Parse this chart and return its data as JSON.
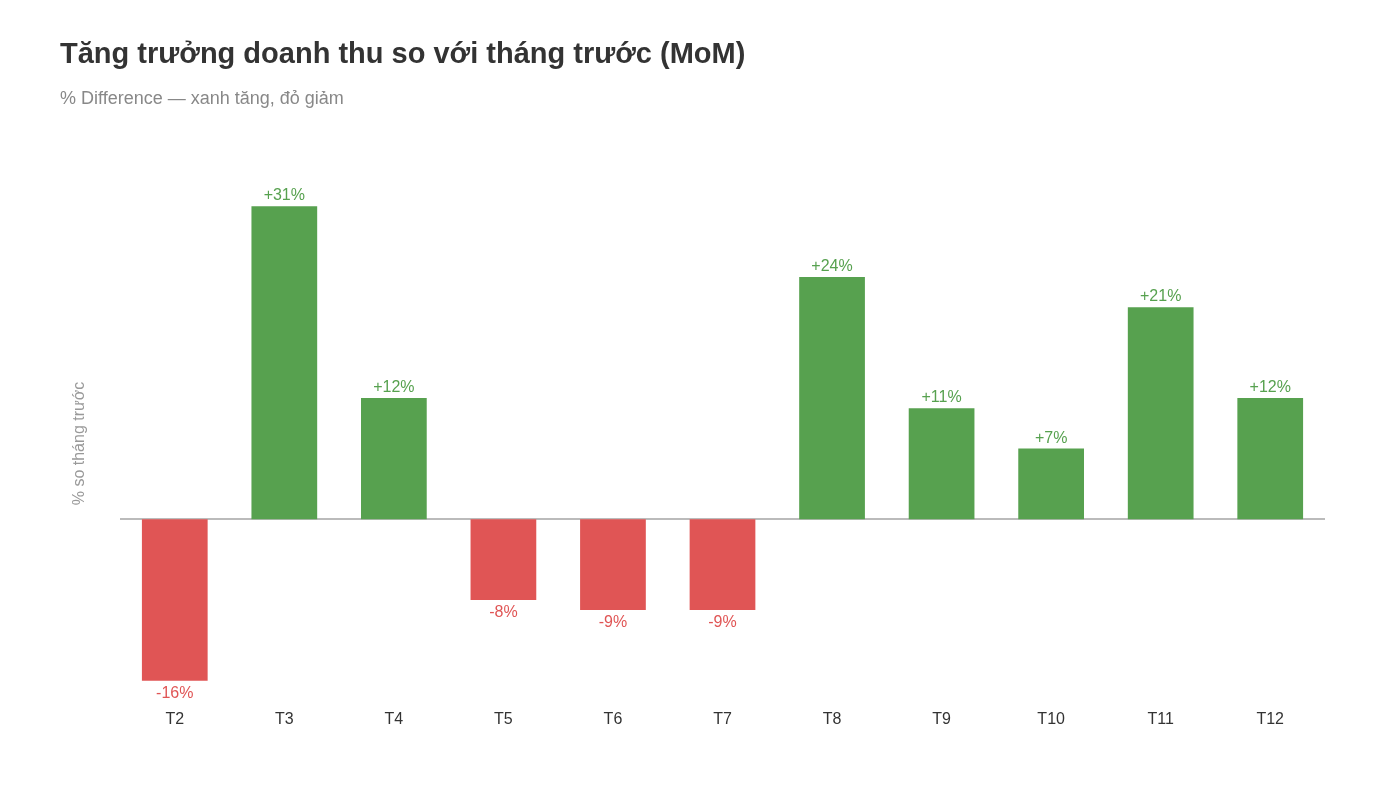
{
  "chart_data": {
    "type": "bar",
    "title": "Tăng trưởng doanh thu so với tháng trước (MoM)",
    "subtitle": "% Difference — xanh tăng, đỏ giảm",
    "ylabel": "% so tháng trước",
    "categories": [
      "T2",
      "T3",
      "T4",
      "T5",
      "T6",
      "T7",
      "T8",
      "T9",
      "T10",
      "T11",
      "T12"
    ],
    "values": [
      -16,
      31,
      12,
      -8,
      -9,
      -9,
      24,
      11,
      7,
      21,
      12
    ],
    "value_labels": [
      "-16%",
      "+31%",
      "+12%",
      "-8%",
      "-9%",
      "-9%",
      "+24%",
      "+11%",
      "+7%",
      "+21%",
      "+12%"
    ],
    "colors": [
      "#e05555",
      "#57a14f",
      "#57a14f",
      "#e05555",
      "#e05555",
      "#e05555",
      "#57a14f",
      "#57a14f",
      "#57a14f",
      "#57a14f",
      "#57a14f"
    ],
    "tick_labels": "x"
  }
}
